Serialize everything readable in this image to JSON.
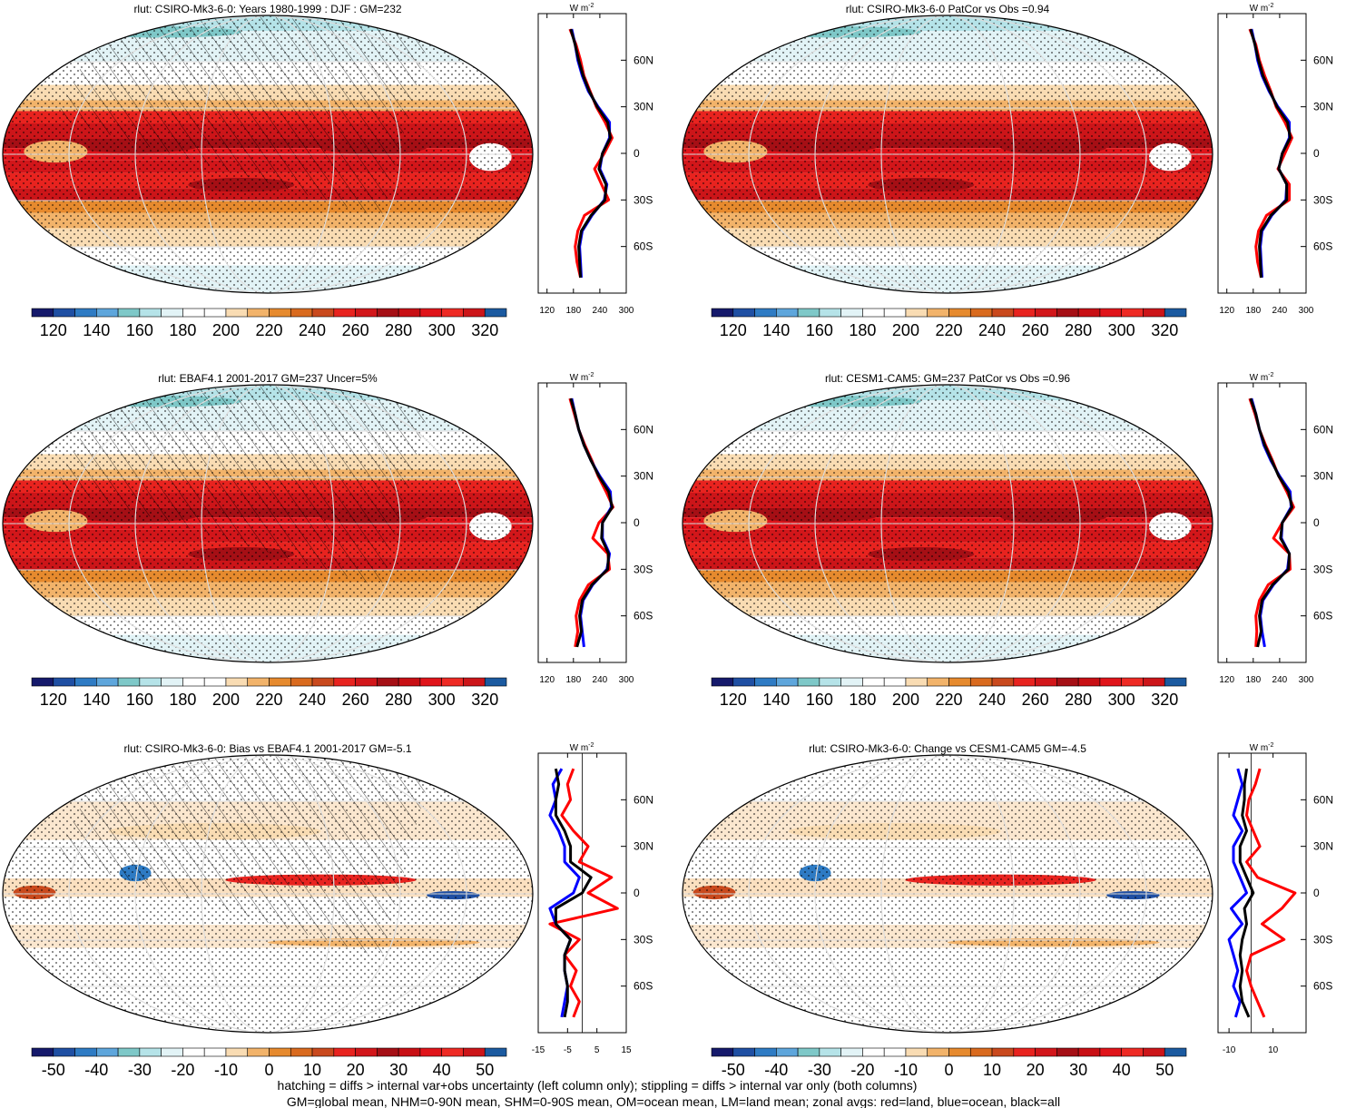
{
  "palettes": {
    "abs": [
      "#15196b",
      "#1f4fa3",
      "#2e7bc4",
      "#5ea6dc",
      "#7ec8c8",
      "#b5e3e8",
      "#e2f3f6",
      "#ffffff",
      "#ffffff",
      "#f9dcb3",
      "#f2b36a",
      "#e68a2e",
      "#d96a1e",
      "#c9491d",
      "#e8231f",
      "#d2161a",
      "#a50f15",
      "#c80f14",
      "#e0141a",
      "#ee2a24",
      "#cc1519",
      "#1b5aa0"
    ],
    "diff": [
      "#15196b",
      "#1f4fa3",
      "#2e7bc4",
      "#5ea6dc",
      "#7ec8c8",
      "#b5e3e8",
      "#e2f3f6",
      "#ffffff",
      "#ffffff",
      "#f9dcb3",
      "#f2b36a",
      "#e68a2e",
      "#d96a1e",
      "#c9491d",
      "#e8231f",
      "#d2161a",
      "#a50f15",
      "#c80f14",
      "#e0141a",
      "#ee2a24",
      "#cc1519",
      "#1b5aa0"
    ]
  },
  "zonal_colors": {
    "land": "#ff0000",
    "ocean": "#0000ff",
    "all": "#000000"
  },
  "zonal_unit": {
    "base": "W m",
    "exp": "-2"
  },
  "lat_labels": [
    "60N",
    "30N",
    "0",
    "30S",
    "60S"
  ],
  "chart_data": [
    {
      "type": "heatmap",
      "title": "rlut: CSIRO-Mk3-6-0: Years 1980-1999 : DJF : GM=232",
      "colorbar": {
        "palette": "abs",
        "ticks": [
          "120",
          "140",
          "160",
          "180",
          "200",
          "220",
          "240",
          "260",
          "280",
          "300",
          "320"
        ]
      },
      "zonal_mean": {
        "type": "line",
        "x_ticks": [
          "120",
          "180",
          "240",
          "300"
        ],
        "xlim": [
          100,
          300
        ],
        "ylim": [
          -90,
          90
        ],
        "lat": [
          -80,
          -70,
          -60,
          -50,
          -40,
          -30,
          -20,
          -10,
          0,
          10,
          20,
          30,
          40,
          50,
          60,
          70,
          80
        ],
        "series": [
          {
            "key": "land",
            "values": [
              196,
              188,
              184,
              190,
              205,
              260,
              244,
              228,
              250,
              268,
              252,
              232,
              218,
              204,
              196,
              186,
              172
            ]
          },
          {
            "key": "ocean",
            "values": [
              198,
              196,
              194,
              200,
              222,
              250,
              256,
              240,
              246,
              262,
              262,
              236,
              214,
              200,
              190,
              184,
              176
            ]
          },
          {
            "key": "all",
            "values": [
              196,
              194,
              192,
              198,
              220,
              252,
              254,
              238,
              246,
              264,
              258,
              234,
              216,
              202,
              192,
              184,
              174
            ]
          }
        ]
      }
    },
    {
      "type": "heatmap",
      "title": "rlut: CSIRO-Mk3-6-0 PatCor vs Obs =0.94",
      "colorbar": {
        "palette": "abs",
        "ticks": [
          "120",
          "140",
          "160",
          "180",
          "200",
          "220",
          "240",
          "260",
          "280",
          "300",
          "320"
        ]
      },
      "zonal_mean": {
        "type": "line",
        "x_ticks": [
          "120",
          "180",
          "240",
          "300"
        ],
        "xlim": [
          100,
          300
        ],
        "ylim": [
          -90,
          90
        ],
        "lat": [
          -80,
          -70,
          -60,
          -50,
          -40,
          -30,
          -20,
          -10,
          0,
          10,
          20,
          30,
          40,
          50,
          60,
          70,
          80
        ],
        "series": [
          {
            "key": "land",
            "values": [
              198,
              190,
              186,
              192,
              210,
              262,
              262,
              236,
              252,
              268,
              252,
              232,
              220,
              206,
              194,
              186,
              172
            ]
          },
          {
            "key": "ocean",
            "values": [
              200,
              198,
              196,
              200,
              222,
              254,
              256,
              238,
              246,
              262,
              262,
              236,
              216,
              200,
              190,
              184,
              176
            ]
          },
          {
            "key": "all",
            "values": [
              198,
              196,
              194,
              198,
              220,
              256,
              256,
              238,
              246,
              264,
              258,
              234,
              218,
              202,
              192,
              184,
              174
            ]
          }
        ]
      }
    },
    {
      "type": "heatmap",
      "title": "rlut: EBAF4.1 2001-2017 GM=237 Uncer=5%",
      "colorbar": {
        "palette": "abs",
        "ticks": [
          "120",
          "140",
          "160",
          "180",
          "200",
          "220",
          "240",
          "260",
          "280",
          "300",
          "320"
        ]
      },
      "zonal_mean": {
        "type": "line",
        "x_ticks": [
          "120",
          "180",
          "240",
          "300"
        ],
        "xlim": [
          100,
          300
        ],
        "ylim": [
          -90,
          90
        ],
        "lat": [
          -80,
          -70,
          -60,
          -50,
          -40,
          -30,
          -20,
          -10,
          0,
          10,
          20,
          30,
          40,
          50,
          60,
          70,
          80
        ],
        "series": [
          {
            "key": "land",
            "values": [
              184,
              190,
              186,
              194,
              214,
              262,
              258,
              224,
              238,
              270,
              254,
              236,
              222,
              206,
              192,
              182,
              172
            ]
          },
          {
            "key": "ocean",
            "values": [
              204,
              200,
              196,
              202,
              224,
              256,
              262,
              246,
              246,
              266,
              264,
              240,
              220,
              204,
              192,
              184,
              176
            ]
          },
          {
            "key": "all",
            "values": [
              188,
              198,
              194,
              200,
              222,
              258,
              260,
              244,
              246,
              268,
              260,
              238,
              220,
              204,
              192,
              184,
              174
            ]
          }
        ]
      }
    },
    {
      "type": "heatmap",
      "title": "rlut: CESM1-CAM5: GM=237 PatCor vs Obs =0.96",
      "colorbar": {
        "palette": "abs",
        "ticks": [
          "120",
          "140",
          "160",
          "180",
          "200",
          "220",
          "240",
          "260",
          "280",
          "300",
          "320"
        ]
      },
      "zonal_mean": {
        "type": "line",
        "x_ticks": [
          "120",
          "180",
          "240",
          "300"
        ],
        "xlim": [
          100,
          300
        ],
        "ylim": [
          -90,
          90
        ],
        "lat": [
          -80,
          -70,
          -60,
          -50,
          -40,
          -30,
          -20,
          -10,
          0,
          10,
          20,
          30,
          40,
          50,
          60,
          70,
          80
        ],
        "series": [
          {
            "key": "land",
            "values": [
              186,
              188,
              186,
              194,
              214,
              264,
              262,
              226,
              246,
              272,
              256,
              238,
              224,
              208,
              194,
              184,
              172
            ]
          },
          {
            "key": "ocean",
            "values": [
              206,
              200,
              196,
              202,
              226,
              258,
              262,
              244,
              246,
              266,
              264,
              240,
              220,
              204,
              194,
              186,
              176
            ]
          },
          {
            "key": "all",
            "values": [
              190,
              198,
              194,
              200,
              224,
              260,
              262,
              242,
              246,
              268,
              260,
              238,
              222,
              206,
              194,
              186,
              174
            ]
          }
        ]
      }
    },
    {
      "type": "heatmap",
      "title": "rlut: CSIRO-Mk3-6-0: Bias vs EBAF4.1 2001-2017 GM=-5.1",
      "colorbar": {
        "palette": "diff",
        "ticks": [
          "-50",
          "-40",
          "-30",
          "-20",
          "-10",
          "0",
          "10",
          "20",
          "30",
          "40",
          "50"
        ]
      },
      "zonal_mean": {
        "type": "line",
        "x_ticks": [
          "-15",
          "-5",
          "5",
          "15"
        ],
        "xlim": [
          -15,
          15
        ],
        "ylim": [
          -90,
          90
        ],
        "lat": [
          -80,
          -70,
          -60,
          -50,
          -40,
          -30,
          -20,
          -10,
          0,
          10,
          20,
          30,
          40,
          50,
          60,
          70,
          80
        ],
        "series": [
          {
            "key": "land",
            "values": [
              -3,
              -1,
              -4,
              -2,
              -6,
              -1,
              -11,
              12,
              2,
              10,
              -1,
              2,
              -3,
              -7,
              -4,
              -5,
              -3
            ]
          },
          {
            "key": "ocean",
            "values": [
              -7,
              -6,
              -5,
              -6,
              -6,
              -4,
              -9,
              -11,
              -3,
              -1,
              -6,
              -6,
              -8,
              -11,
              -9,
              -10,
              -7
            ]
          },
          {
            "key": "all",
            "values": [
              -6,
              -5,
              -5,
              -6,
              -6,
              -4,
              -9,
              -9,
              0,
              3,
              -4,
              -4,
              -6,
              -9,
              -9,
              -8,
              -9
            ]
          }
        ]
      }
    },
    {
      "type": "heatmap",
      "title": "rlut: CSIRO-Mk3-6-0: Change vs CESM1-CAM5 GM=-4.5",
      "colorbar": {
        "palette": "diff",
        "ticks": [
          "-50",
          "-40",
          "-30",
          "-20",
          "-10",
          "0",
          "10",
          "20",
          "30",
          "40",
          "50"
        ]
      },
      "zonal_mean": {
        "type": "line",
        "x_ticks": [
          "-10",
          "10"
        ],
        "xlim": [
          -15,
          25
        ],
        "ylim": [
          -90,
          90
        ],
        "lat": [
          -80,
          -70,
          -60,
          -50,
          -40,
          -30,
          -20,
          -10,
          0,
          10,
          20,
          30,
          40,
          50,
          60,
          70,
          80
        ],
        "series": [
          {
            "key": "land",
            "values": [
              6,
              3,
              0,
              -2,
              0,
              15,
              5,
              14,
              20,
              3,
              -2,
              4,
              1,
              -2,
              -1,
              2,
              4
            ]
          },
          {
            "key": "ocean",
            "values": [
              -7,
              -5,
              -8,
              -6,
              -8,
              -10,
              -4,
              -9,
              -2,
              -5,
              -8,
              -8,
              -4,
              -8,
              -6,
              -4,
              -6
            ]
          },
          {
            "key": "all",
            "values": [
              -1,
              -4,
              -5,
              -4,
              -5,
              -4,
              -2,
              -3,
              1,
              -2,
              -5,
              -5,
              -2,
              -4,
              -3,
              -3,
              -2
            ]
          }
        ]
      }
    }
  ],
  "footnotes": [
    "hatching = diffs > internal var+obs uncertainty (left column only); stippling = diffs > internal var only (both columns)",
    "GM=global mean, NHM=0-90N mean, SHM=0-90S mean, OM=ocean mean, LM=land mean; zonal avgs: red=land, blue=ocean, black=all"
  ]
}
